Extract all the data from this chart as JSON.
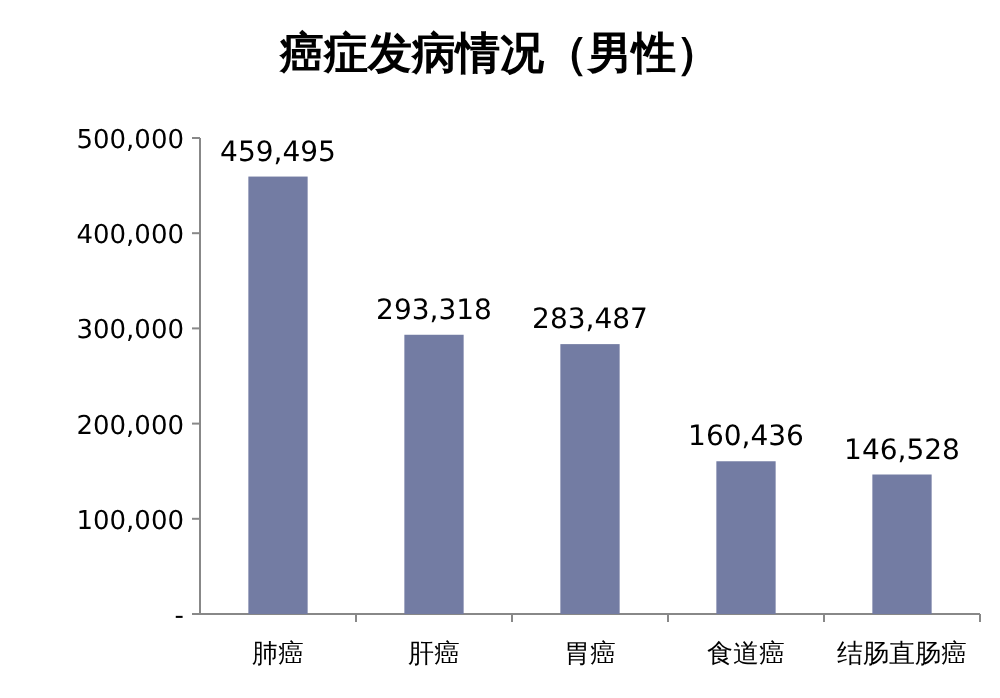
{
  "chart_data": {
    "type": "bar",
    "title": "癌症发病情况（男性）",
    "categories": [
      "肺癌",
      "肝癌",
      "胃癌",
      "食道癌",
      "结肠直肠癌"
    ],
    "values": [
      459495,
      293318,
      283487,
      160436,
      146528
    ],
    "color": "#737ca3",
    "ylim": [
      0,
      500000
    ],
    "yticks": [
      {
        "value": 0,
        "label": "-"
      },
      {
        "value": 100000,
        "label": "100,000"
      },
      {
        "value": 200000,
        "label": "200,000"
      },
      {
        "value": 300000,
        "label": "300,000"
      },
      {
        "value": 400000,
        "label": "400,000"
      },
      {
        "value": 500000,
        "label": "500,000"
      }
    ],
    "value_labels": [
      "459,495",
      "293,318",
      "283,487",
      "160,436",
      "146,528"
    ]
  }
}
